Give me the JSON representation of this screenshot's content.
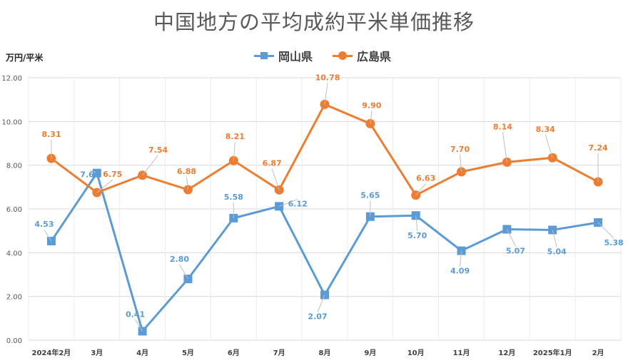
{
  "title": "中国地方の平均成約平米単価推移",
  "unit_label": "万円/平米",
  "colors": {
    "okayama": "#5B9BD5",
    "hiroshima": "#ED7D31",
    "grid": "#D9D9D9",
    "axis_text": "#595959"
  },
  "legend": [
    {
      "label": "岡山県",
      "marker": "square",
      "color": "#5B9BD5"
    },
    {
      "label": "広島県",
      "marker": "circle",
      "color": "#ED7D31"
    }
  ],
  "chart_data": {
    "type": "line",
    "title": "中国地方の平均成約平米単価推移",
    "ylabel": "万円/平米",
    "xlabel": "",
    "categories": [
      "2024年2月",
      "3月",
      "4月",
      "5月",
      "6月",
      "7月",
      "8月",
      "9月",
      "10月",
      "11月",
      "12月",
      "2025年1月",
      "2月"
    ],
    "ylim": [
      0,
      12
    ],
    "yticks": [
      "0.00",
      "2.00",
      "4.00",
      "6.00",
      "8.00",
      "10.00",
      "12.00"
    ],
    "grid": true,
    "legend_position": "top",
    "series": [
      {
        "name": "岡山県",
        "marker": "square",
        "values": [
          4.53,
          7.64,
          0.41,
          2.8,
          5.58,
          6.12,
          2.07,
          5.65,
          5.7,
          4.09,
          5.07,
          5.04,
          5.38
        ],
        "labels": [
          "4.53",
          "7.64",
          "0.41",
          "2.80",
          "5.58",
          "6.12",
          "2.07",
          "5.65",
          "5.70",
          "4.09",
          "5.07",
          "5.04",
          "5.38"
        ]
      },
      {
        "name": "広島県",
        "marker": "circle",
        "values": [
          8.31,
          6.75,
          7.54,
          6.88,
          8.21,
          6.87,
          10.78,
          9.9,
          6.63,
          7.7,
          8.14,
          8.34,
          7.24
        ],
        "labels": [
          "8.31",
          "6.75",
          "7.54",
          "6.88",
          "8.21",
          "6.87",
          "10.78",
          "9.90",
          "6.63",
          "7.70",
          "8.14",
          "8.34",
          "7.24"
        ]
      }
    ]
  }
}
